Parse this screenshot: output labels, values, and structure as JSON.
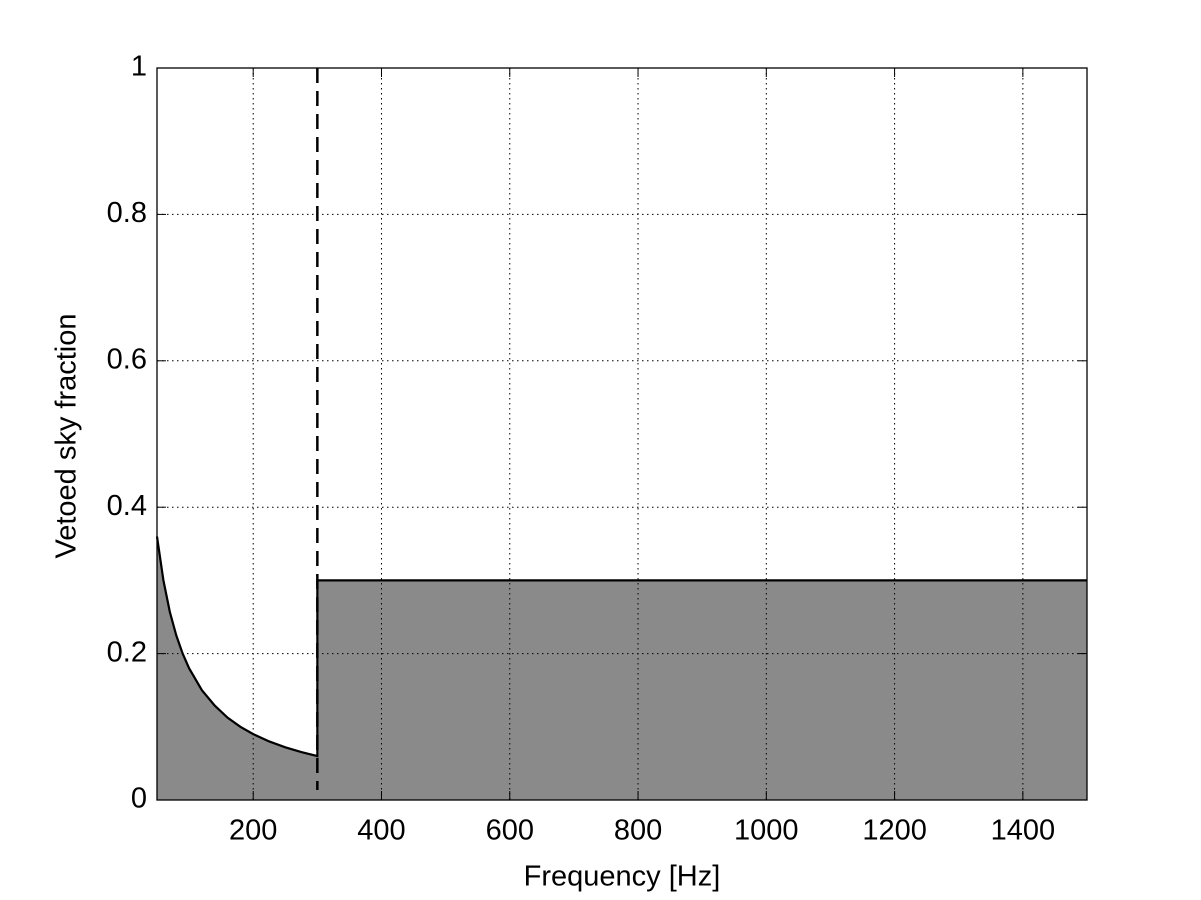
{
  "chart_data": {
    "type": "area",
    "xlabel": "Frequency [Hz]",
    "ylabel": "Vetoed sky fraction",
    "series": [
      {
        "color": "#8a8a8a",
        "line_color": "#000000",
        "x": [
          50,
          60,
          70,
          80,
          90,
          100,
          120,
          140,
          160,
          180,
          200,
          225,
          250,
          275,
          300,
          300,
          1500
        ],
        "values": [
          0.36,
          0.3,
          0.257,
          0.225,
          0.2,
          0.18,
          0.15,
          0.129,
          0.1125,
          0.1,
          0.09,
          0.08,
          0.072,
          0.0655,
          0.06,
          0.3,
          0.3
        ]
      }
    ],
    "vline": {
      "x": 300,
      "style": "dashed"
    },
    "xlim": [
      50,
      1500
    ],
    "xticks": [
      200,
      400,
      600,
      800,
      1000,
      1200,
      1400
    ],
    "ylim": [
      0,
      1
    ],
    "yticks": [
      0,
      0.2,
      0.4,
      0.6,
      0.8,
      1
    ],
    "grid": true
  }
}
